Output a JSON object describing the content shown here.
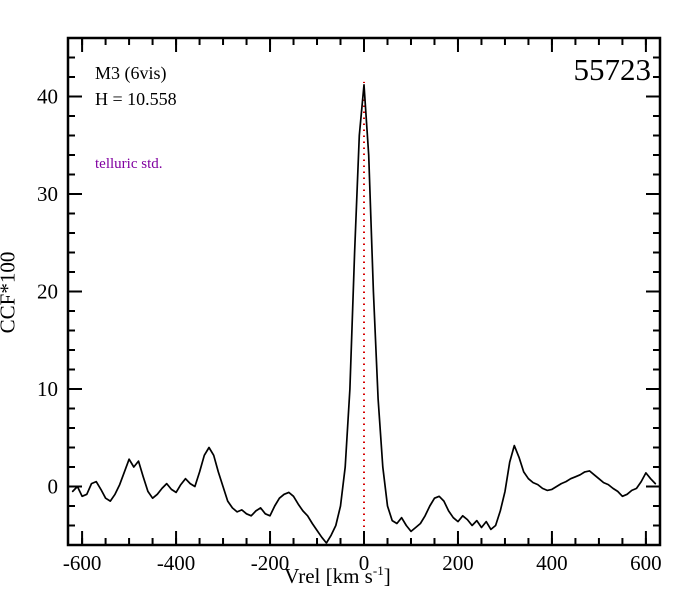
{
  "labels": {
    "spectral_type": "M3 (6vis)",
    "h_magnitude": "H = 10.558",
    "telluric": "telluric std.",
    "telluric_color": "#8000a0",
    "star_id": "55723",
    "xlabel_prefix": "Vrel [km s",
    "xlabel_sup": "-1",
    "xlabel_suffix": "]",
    "ylabel": "CCF*100"
  },
  "chart_data": {
    "type": "line",
    "title": "55723",
    "xlabel": "Vrel [km s^-1]",
    "ylabel": "CCF*100",
    "xlim": [
      -630,
      630
    ],
    "ylim": [
      -6,
      46
    ],
    "x_major_ticks": [
      -600,
      -400,
      -200,
      0,
      200,
      400,
      600
    ],
    "x_minor_step": 50,
    "y_major_ticks": [
      0,
      10,
      20,
      30,
      40
    ],
    "y_minor_step": 2,
    "grid": false,
    "legend": "none",
    "frame_color": "#000000",
    "vline": {
      "x": 0,
      "y_top": 41.5,
      "color": "#d40000",
      "style": "dotted"
    },
    "series": [
      {
        "name": "ccf",
        "color": "#000000",
        "x_start": -620,
        "x_step": 10,
        "y": [
          -0.5,
          0.0,
          -1.0,
          -0.8,
          0.3,
          0.5,
          -0.3,
          -1.2,
          -1.5,
          -0.8,
          0.2,
          1.5,
          2.8,
          2.0,
          2.6,
          1.0,
          -0.5,
          -1.2,
          -0.8,
          -0.2,
          0.3,
          -0.3,
          -0.6,
          0.2,
          0.8,
          0.3,
          0.0,
          1.5,
          3.2,
          4.0,
          3.2,
          1.5,
          0.0,
          -1.5,
          -2.2,
          -2.6,
          -2.4,
          -2.8,
          -3.0,
          -2.5,
          -2.2,
          -2.8,
          -3.0,
          -2.0,
          -1.2,
          -0.8,
          -0.6,
          -1.0,
          -1.8,
          -2.5,
          -3.0,
          -3.8,
          -4.5,
          -5.2,
          -5.8,
          -5.0,
          -4.0,
          -2.0,
          2.0,
          10.0,
          24.0,
          36.0,
          41.2,
          34.0,
          20.0,
          9.0,
          2.0,
          -2.0,
          -3.5,
          -3.8,
          -3.2,
          -4.0,
          -4.6,
          -4.2,
          -3.8,
          -3.0,
          -2.0,
          -1.2,
          -1.0,
          -1.5,
          -2.5,
          -3.2,
          -3.6,
          -3.0,
          -3.4,
          -4.0,
          -3.5,
          -4.2,
          -3.6,
          -4.4,
          -4.0,
          -2.5,
          -0.5,
          2.5,
          4.2,
          3.0,
          1.5,
          0.8,
          0.4,
          0.2,
          -0.2,
          -0.4,
          -0.3,
          0.0,
          0.3,
          0.5,
          0.8,
          1.0,
          1.2,
          1.5,
          1.6,
          1.2,
          0.8,
          0.4,
          0.2,
          -0.2,
          -0.5,
          -1.0,
          -0.8,
          -0.4,
          -0.2,
          0.5,
          1.4,
          0.8,
          0.3
        ]
      }
    ]
  }
}
